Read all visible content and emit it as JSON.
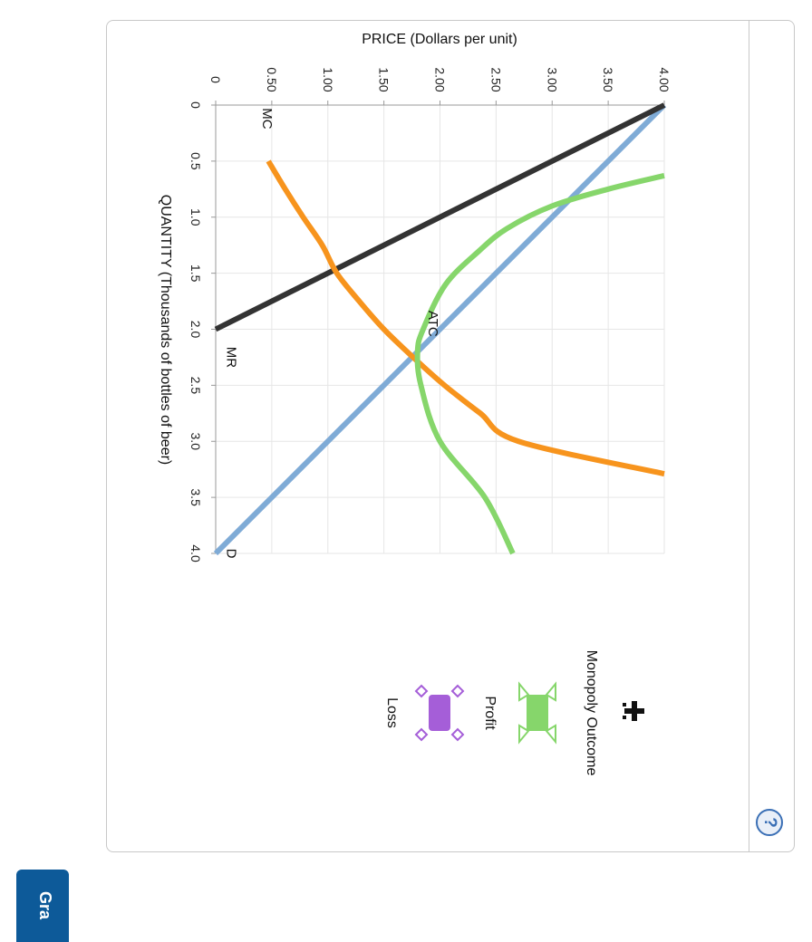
{
  "chart_data": {
    "type": "line",
    "xlabel": "QUANTITY (Thousands of bottles of beer)",
    "ylabel": "PRICE (Dollars per unit)",
    "xlim": [
      0,
      4.0
    ],
    "ylim": [
      0,
      4.0
    ],
    "x_ticks": [
      "0",
      "0.5",
      "1.0",
      "1.5",
      "2.0",
      "2.5",
      "3.0",
      "3.5",
      "4.0"
    ],
    "y_ticks": [
      "0",
      "0.50",
      "1.00",
      "1.50",
      "2.00",
      "2.50",
      "3.00",
      "3.50",
      "4.00"
    ],
    "grid": true,
    "series": [
      {
        "name": "D",
        "color": "#7fabd6",
        "points": [
          [
            0,
            4.0
          ],
          [
            4.0,
            0
          ]
        ]
      },
      {
        "name": "MR",
        "color": "#333333",
        "points": [
          [
            0,
            4.0
          ],
          [
            2.0,
            0
          ]
        ]
      },
      {
        "name": "MC",
        "color": "#f7941d",
        "points": [
          [
            0.5,
            0.47
          ],
          [
            0.75,
            0.62
          ],
          [
            1.0,
            0.78
          ],
          [
            1.25,
            0.95
          ],
          [
            1.5,
            1.08
          ],
          [
            1.75,
            1.28
          ],
          [
            2.0,
            1.5
          ],
          [
            2.25,
            1.76
          ],
          [
            2.5,
            2.04
          ],
          [
            2.75,
            2.36
          ],
          [
            3.0,
            2.7
          ],
          [
            3.29,
            4.0
          ]
        ]
      },
      {
        "name": "ATC",
        "color": "#86d66b",
        "points": [
          [
            0.63,
            4.0
          ],
          [
            0.75,
            3.5
          ],
          [
            0.9,
            3.0
          ],
          [
            1.1,
            2.6
          ],
          [
            1.3,
            2.35
          ],
          [
            1.6,
            2.05
          ],
          [
            2.0,
            1.85
          ],
          [
            2.2,
            1.8
          ],
          [
            2.5,
            1.83
          ],
          [
            3.0,
            2.0
          ],
          [
            3.5,
            2.4
          ],
          [
            4.0,
            2.65
          ]
        ]
      }
    ]
  },
  "legend": {
    "title": "Monopoly Outcome",
    "items": [
      {
        "label": "Profit",
        "color": "#86d66b"
      },
      {
        "label": "Loss",
        "color": "#a55ed8"
      }
    ],
    "move_icon": "move-cross-icon"
  },
  "buttons": {
    "help_icon": "?",
    "grade_label": "Gra"
  }
}
